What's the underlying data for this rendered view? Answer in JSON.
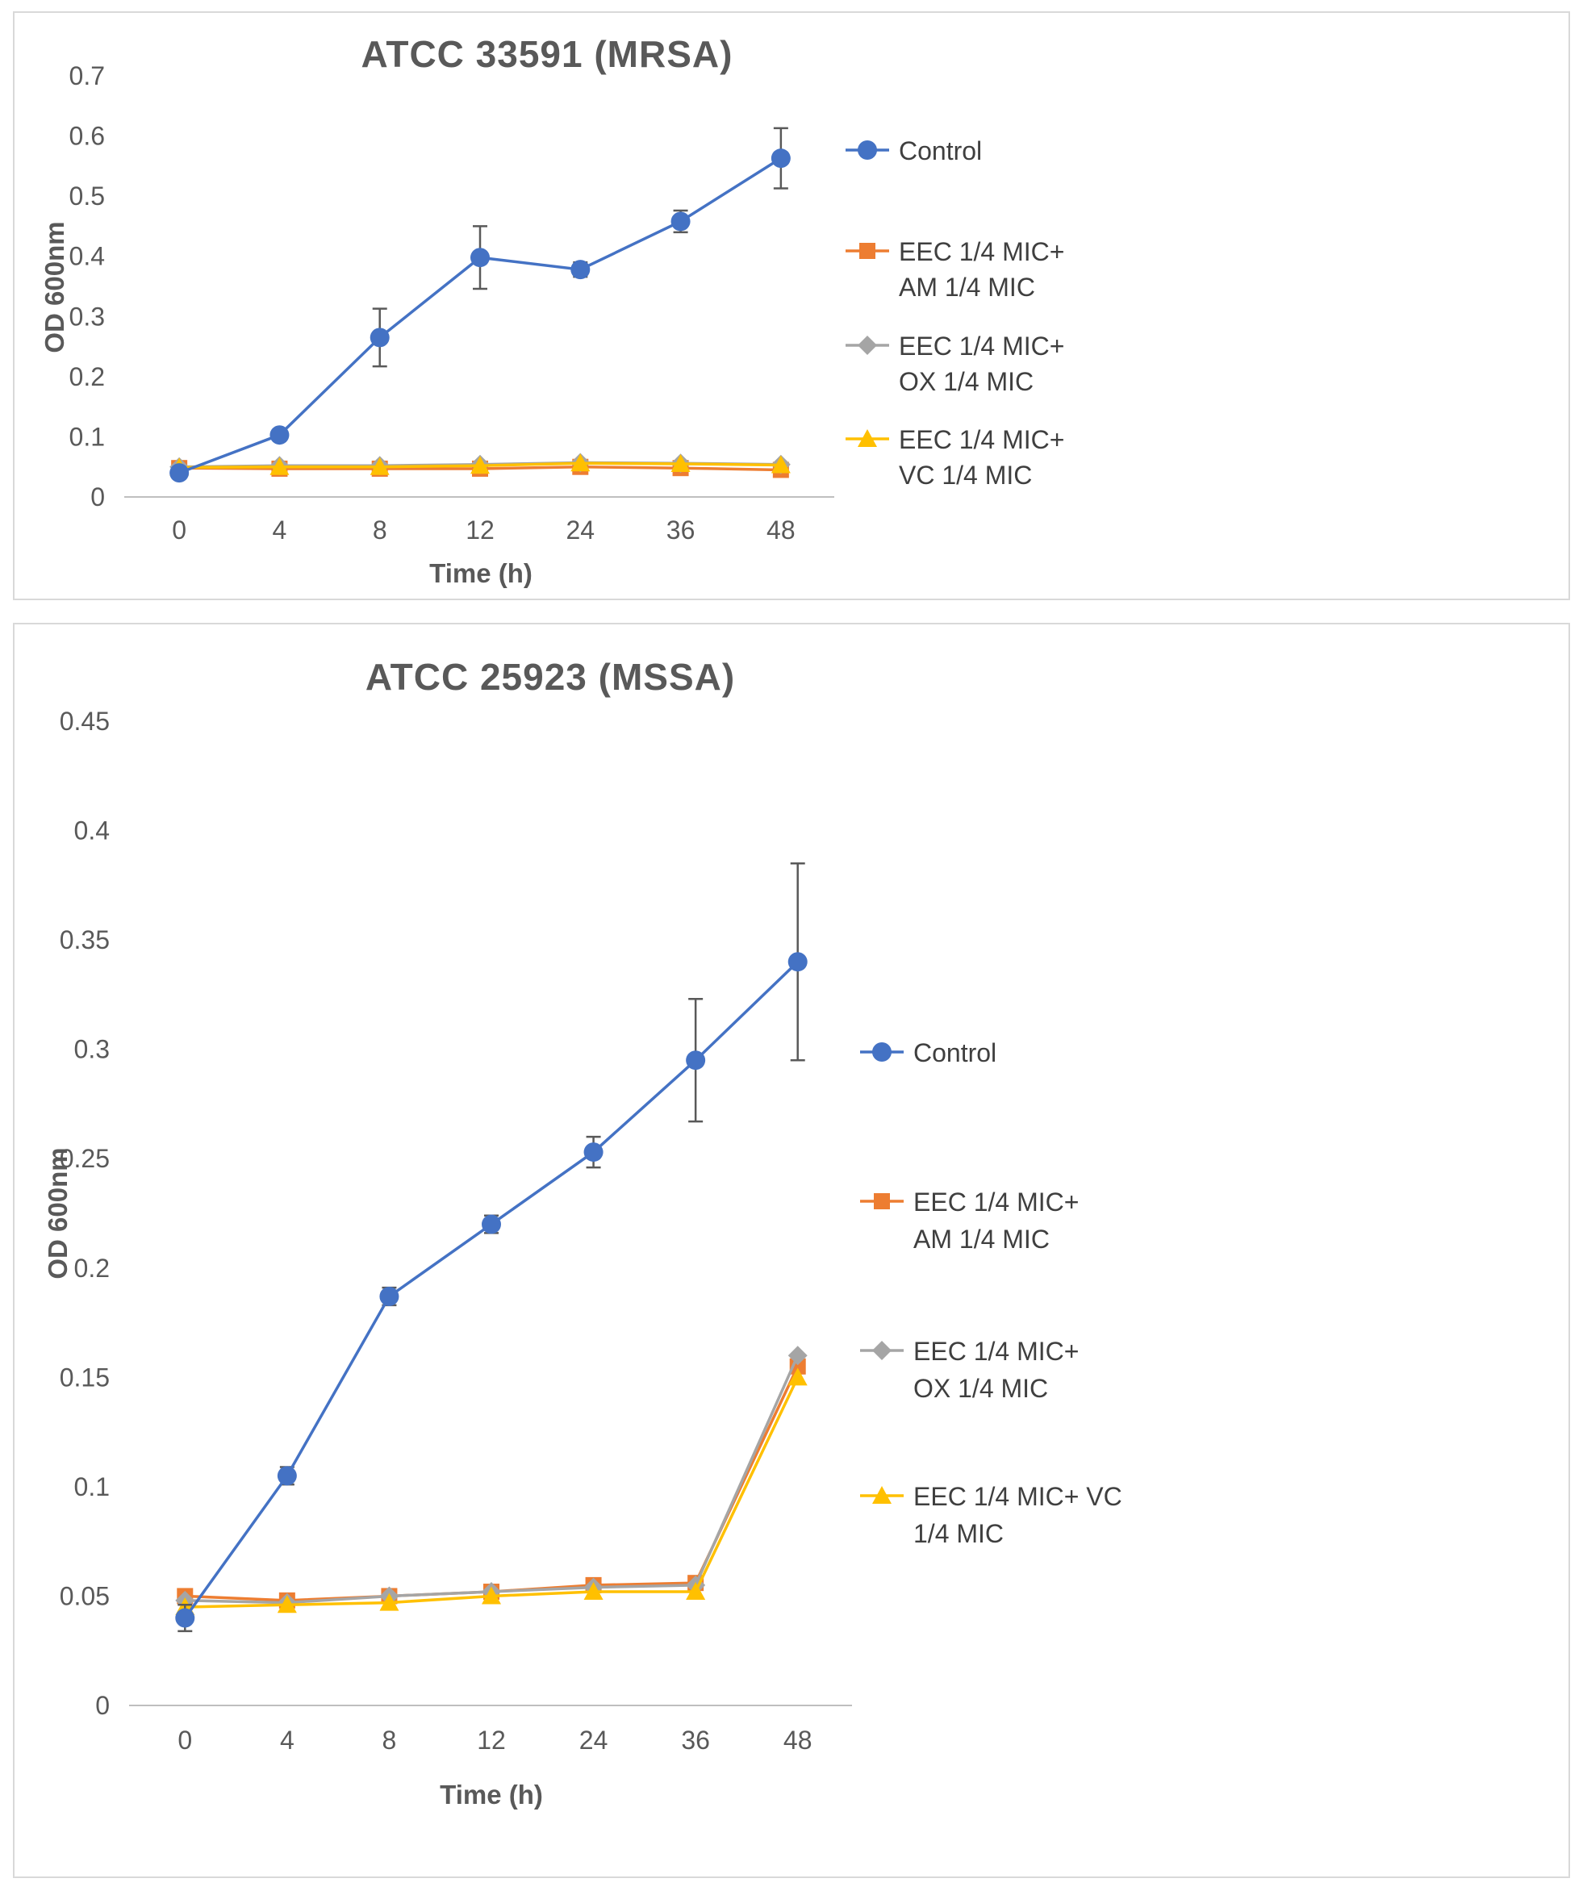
{
  "page": {
    "background": "#ffffff",
    "border_color": "#d9d9d9"
  },
  "chart_data": [
    {
      "type": "line",
      "title": "ATCC 33591 (MRSA)",
      "y_label": "OD 600nm",
      "x_label": "Time (h)",
      "y_max": 0.7,
      "y_ticks": [
        "0",
        "0.1",
        "0.2",
        "0.3",
        "0.4",
        "0.5",
        "0.6",
        "0.7"
      ],
      "categories": [
        "0",
        "4",
        "8",
        "12",
        "24",
        "36",
        "48"
      ],
      "grid": false,
      "legend_position": "right",
      "error_bar_color": "#595959",
      "axis_line_color": "#bfbfbf",
      "series": [
        {
          "name": "Control",
          "legend_lines": [
            "Control"
          ],
          "color": "#4472C4",
          "marker": "circle",
          "values": [
            0.04,
            0.103,
            0.265,
            0.398,
            0.378,
            0.458,
            0.563
          ],
          "errors": [
            0.008,
            0.004,
            0.048,
            0.052,
            0.012,
            0.018,
            0.05
          ]
        },
        {
          "name": "EEC 1/4 MIC+ AM 1/4 MIC",
          "legend_lines": [
            "EEC 1/4 MIC+",
            "AM 1/4 MIC"
          ],
          "color": "#ED7D31",
          "marker": "square",
          "values": [
            0.048,
            0.047,
            0.047,
            0.047,
            0.05,
            0.048,
            0.045
          ],
          "errors": [
            0,
            0,
            0,
            0,
            0,
            0,
            0
          ]
        },
        {
          "name": "EEC 1/4 MIC+ OX 1/4 MIC",
          "legend_lines": [
            "EEC 1/4 MIC+",
            "OX 1/4 MIC"
          ],
          "color": "#A5A5A5",
          "marker": "diamond",
          "values": [
            0.05,
            0.052,
            0.052,
            0.054,
            0.057,
            0.056,
            0.054
          ],
          "errors": [
            0,
            0,
            0,
            0,
            0,
            0,
            0
          ]
        },
        {
          "name": "EEC 1/4 MIC+ VC 1/4 MIC",
          "legend_lines": [
            "EEC 1/4 MIC+",
            "VC 1/4 MIC"
          ],
          "color": "#FFC000",
          "marker": "triangle",
          "values": [
            0.049,
            0.05,
            0.05,
            0.052,
            0.056,
            0.055,
            0.053
          ],
          "errors": [
            0,
            0,
            0,
            0,
            0,
            0,
            0
          ]
        }
      ]
    },
    {
      "type": "line",
      "title": "ATCC 25923 (MSSA)",
      "y_label": "OD 600nm",
      "x_label": "Time (h)",
      "y_max": 0.45,
      "y_ticks": [
        "0",
        "0.05",
        "0.1",
        "0.15",
        "0.2",
        "0.25",
        "0.3",
        "0.35",
        "0.4",
        "0.45"
      ],
      "categories": [
        "0",
        "4",
        "8",
        "12",
        "24",
        "36",
        "48"
      ],
      "grid": false,
      "legend_position": "right",
      "error_bar_color": "#595959",
      "axis_line_color": "#bfbfbf",
      "series": [
        {
          "name": "Control",
          "legend_lines": [
            "Control"
          ],
          "color": "#4472C4",
          "marker": "circle",
          "values": [
            0.04,
            0.105,
            0.187,
            0.22,
            0.253,
            0.295,
            0.34
          ],
          "errors": [
            0.006,
            0.004,
            0.004,
            0.004,
            0.007,
            0.028,
            0.045
          ]
        },
        {
          "name": "EEC 1/4 MIC+ AM 1/4 MIC",
          "legend_lines": [
            "EEC 1/4 MIC+",
            "AM 1/4 MIC"
          ],
          "color": "#ED7D31",
          "marker": "square",
          "values": [
            0.05,
            0.048,
            0.05,
            0.052,
            0.055,
            0.056,
            0.155
          ],
          "errors": [
            0,
            0,
            0,
            0,
            0,
            0,
            0
          ]
        },
        {
          "name": "EEC 1/4 MIC+ OX 1/4 MIC",
          "legend_lines": [
            "EEC 1/4 MIC+",
            "OX 1/4 MIC"
          ],
          "color": "#A5A5A5",
          "marker": "diamond",
          "values": [
            0.048,
            0.047,
            0.05,
            0.052,
            0.054,
            0.055,
            0.16
          ],
          "errors": [
            0,
            0,
            0,
            0,
            0,
            0,
            0
          ]
        },
        {
          "name": "EEC 1/4 MIC+ VC 1/4 MIC",
          "legend_lines": [
            "EEC 1/4 MIC+ VC",
            "1/4 MIC"
          ],
          "color": "#FFC000",
          "marker": "triangle",
          "values": [
            0.045,
            0.046,
            0.047,
            0.05,
            0.052,
            0.052,
            0.15
          ],
          "errors": [
            0,
            0,
            0,
            0,
            0,
            0,
            0
          ]
        }
      ]
    }
  ]
}
